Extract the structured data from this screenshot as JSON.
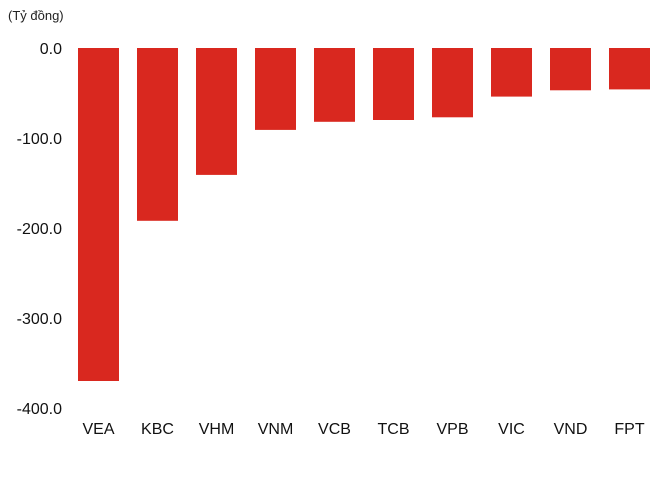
{
  "chart_data": {
    "type": "bar",
    "unit_label": "(Tỷ đồng)",
    "title": "",
    "xlabel": "",
    "ylabel": "",
    "categories": [
      "VEA",
      "KBC",
      "VHM",
      "VNM",
      "VCB",
      "TCB",
      "VPB",
      "VIC",
      "VND",
      "FPT"
    ],
    "values": [
      -370,
      -192,
      -141,
      -91,
      -82,
      -80,
      -77,
      -54,
      -47,
      -46
    ],
    "ylim": [
      -400,
      0
    ],
    "yticks": [
      0,
      -100,
      -200,
      -300,
      -400
    ],
    "ytick_labels": [
      "0.0",
      "-100.0",
      "-200.0",
      "-300.0",
      "-400.0"
    ],
    "grid": false,
    "legend": "none",
    "bar_color": "#d9281f"
  }
}
